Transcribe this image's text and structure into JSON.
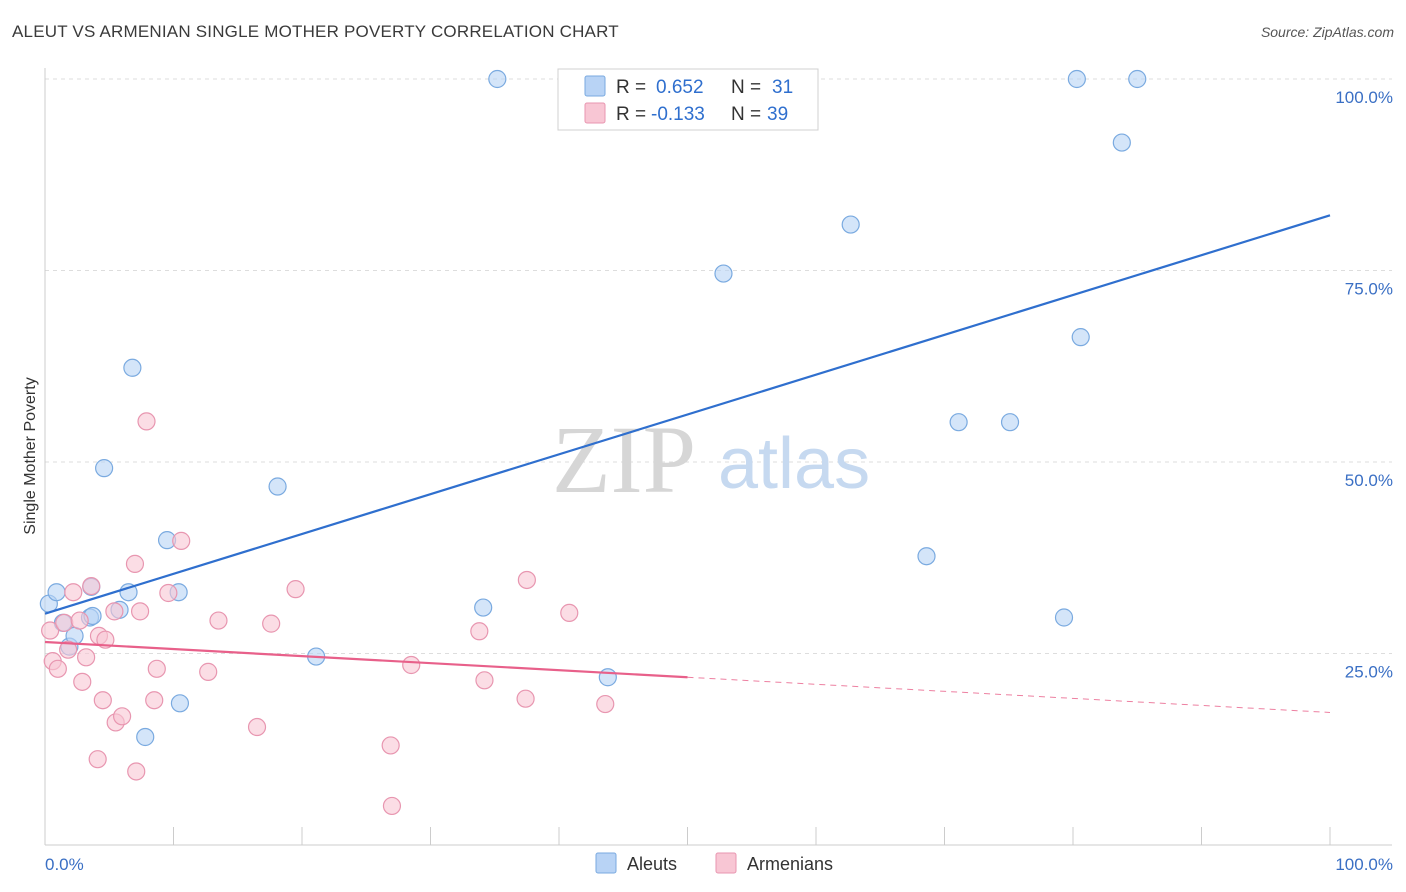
{
  "title": "ALEUT VS ARMENIAN SINGLE MOTHER POVERTY CORRELATION CHART",
  "source": "Source: ZipAtlas.com",
  "watermark": {
    "part1": "ZIP",
    "part2": "atlas"
  },
  "legend": {
    "rows": [
      {
        "r_label": "R =",
        "r_value": "0.652",
        "n_label": "N =",
        "n_value": "31"
      },
      {
        "r_label": "R =",
        "r_value": "-0.133",
        "n_label": "N =",
        "n_value": "39"
      }
    ]
  },
  "bottom_legend": {
    "series1": "Aleuts",
    "series2": "Armenians"
  },
  "colors": {
    "aleut_fill": "#b8d3f5",
    "aleut_stroke": "#7aaae0",
    "aleut_line": "#2f6fce",
    "armenian_fill": "#f8c6d4",
    "armenian_stroke": "#e896b0",
    "armenian_line": "#e8608a",
    "grid": "#dddddd",
    "tick_text": "#3a6fc4"
  },
  "chart_data": {
    "type": "scatter",
    "xlabel": "",
    "ylabel": "Single Mother Poverty",
    "xlim": [
      0,
      100
    ],
    "ylim": [
      0,
      100
    ],
    "x_tick_labels": [
      "0.0%",
      "100.0%"
    ],
    "y_tick_labels": [
      "25.0%",
      "50.0%",
      "75.0%",
      "100.0%"
    ],
    "y_ticks": [
      25,
      50,
      75,
      100
    ],
    "grid": true,
    "legend_position": "top-center",
    "series": [
      {
        "name": "Aleuts",
        "r": 0.652,
        "n": 31,
        "points": [
          [
            0.3,
            31.5
          ],
          [
            0.9,
            33.0
          ],
          [
            1.4,
            29.0
          ],
          [
            1.9,
            25.9
          ],
          [
            2.3,
            27.3
          ],
          [
            3.6,
            33.7
          ],
          [
            3.5,
            29.7
          ],
          [
            3.7,
            29.9
          ],
          [
            5.8,
            30.7
          ],
          [
            6.5,
            33.0
          ],
          [
            4.6,
            49.2
          ],
          [
            6.8,
            62.3
          ],
          [
            9.5,
            39.8
          ],
          [
            10.4,
            33.0
          ],
          [
            10.5,
            18.5
          ],
          [
            7.8,
            14.1
          ],
          [
            18.1,
            46.8
          ],
          [
            21.1,
            24.6
          ],
          [
            34.1,
            31.0
          ],
          [
            35.2,
            100.0
          ],
          [
            43.8,
            21.9
          ],
          [
            52.8,
            74.6
          ],
          [
            62.7,
            81.0
          ],
          [
            68.6,
            37.7
          ],
          [
            71.1,
            55.2
          ],
          [
            75.1,
            55.2
          ],
          [
            79.3,
            29.7
          ],
          [
            80.6,
            66.3
          ],
          [
            80.3,
            100.0
          ],
          [
            83.8,
            91.7
          ],
          [
            85.0,
            100.0
          ]
        ],
        "trend": {
          "x": [
            0,
            100
          ],
          "y": [
            30.2,
            82.2
          ],
          "style": "solid"
        }
      },
      {
        "name": "Armenians",
        "r": -0.133,
        "n": 39,
        "points": [
          [
            0.4,
            28.0
          ],
          [
            0.6,
            24.0
          ],
          [
            1.0,
            23.0
          ],
          [
            1.5,
            29.0
          ],
          [
            1.8,
            25.5
          ],
          [
            2.2,
            33.0
          ],
          [
            2.7,
            29.3
          ],
          [
            2.9,
            21.3
          ],
          [
            3.2,
            24.5
          ],
          [
            3.6,
            33.8
          ],
          [
            4.1,
            11.2
          ],
          [
            4.2,
            27.3
          ],
          [
            4.5,
            18.9
          ],
          [
            4.7,
            26.8
          ],
          [
            5.4,
            30.5
          ],
          [
            5.5,
            16.0
          ],
          [
            6.0,
            16.8
          ],
          [
            7.0,
            36.7
          ],
          [
            7.1,
            9.6
          ],
          [
            7.4,
            30.5
          ],
          [
            7.9,
            55.3
          ],
          [
            8.5,
            18.9
          ],
          [
            8.7,
            23.0
          ],
          [
            9.6,
            32.9
          ],
          [
            10.6,
            39.7
          ],
          [
            12.7,
            22.6
          ],
          [
            13.5,
            29.3
          ],
          [
            16.5,
            15.4
          ],
          [
            17.6,
            28.9
          ],
          [
            19.5,
            33.4
          ],
          [
            26.9,
            13.0
          ],
          [
            27.0,
            5.1
          ],
          [
            28.5,
            23.5
          ],
          [
            33.8,
            27.9
          ],
          [
            34.2,
            21.5
          ],
          [
            37.4,
            19.1
          ],
          [
            37.5,
            34.6
          ],
          [
            40.8,
            30.3
          ],
          [
            43.6,
            18.4
          ]
        ],
        "trend": {
          "x": [
            0,
            50
          ],
          "y": [
            26.5,
            21.9
          ],
          "dashed_to": [
            100,
            17.3
          ]
        }
      }
    ]
  }
}
